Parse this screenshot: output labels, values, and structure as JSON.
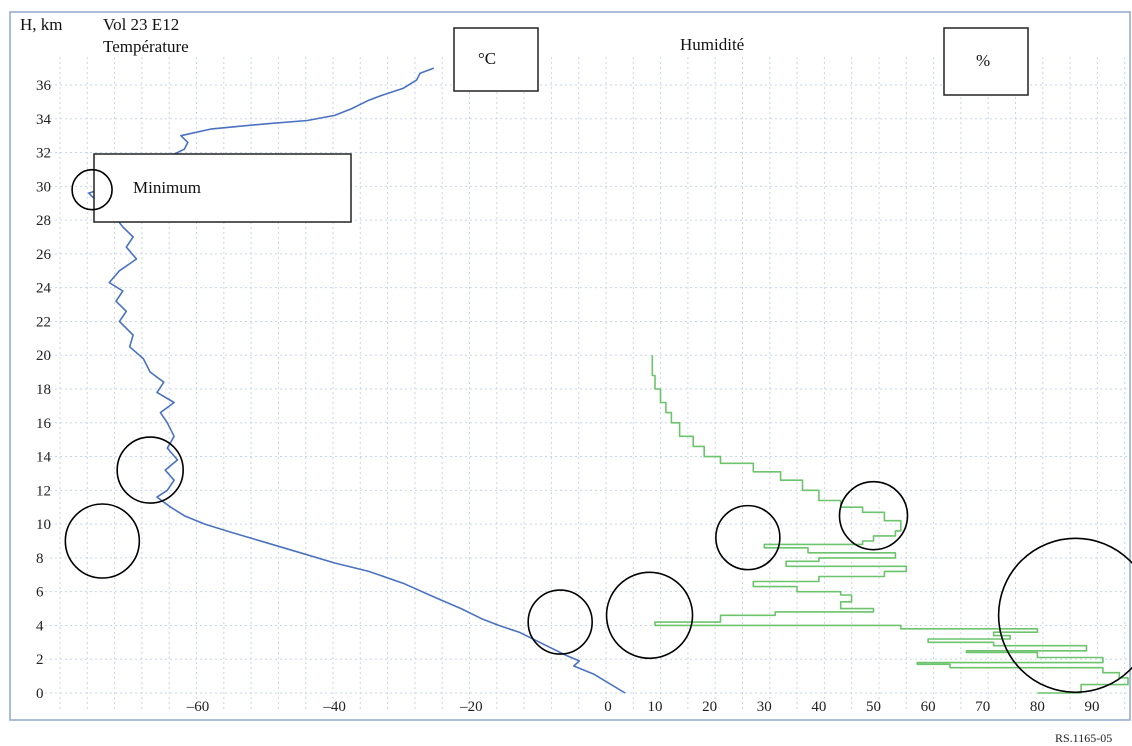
{
  "chart_data": {
    "type": "line",
    "ylabel": "H, km",
    "subtitle": "Vol 23 E12",
    "temperature_label": "Température",
    "humidity_label": "Humidité",
    "unit_celsius": "°C",
    "unit_percent": "%",
    "minimum_label": "Minimum",
    "footer_ref": "RS.1165-05",
    "ylim": [
      0,
      37
    ],
    "y_ticks": [
      0,
      2,
      4,
      6,
      8,
      10,
      12,
      14,
      16,
      18,
      20,
      22,
      24,
      26,
      28,
      30,
      32,
      34,
      36
    ],
    "temperature_axis": {
      "xlim": [
        -77,
        4
      ],
      "ticks": [
        -60,
        -40,
        -20,
        0
      ],
      "tick_labels": [
        "–60",
        "–40",
        "–20",
        "0"
      ]
    },
    "humidity_axis": {
      "xlim": [
        2,
        100
      ],
      "ticks": [
        10,
        20,
        30,
        40,
        50,
        60,
        70,
        80,
        90
      ],
      "tick_labels": [
        "10",
        "20",
        "30",
        "40",
        "50",
        "60",
        "70",
        "80",
        "90"
      ]
    },
    "grid": true,
    "series": [
      {
        "name": "Température",
        "axis": "temperature",
        "color": "#4a72c0",
        "points": [
          [
            2.5,
            0.0
          ],
          [
            -2.0,
            1.1
          ],
          [
            -5.0,
            1.6
          ],
          [
            -4.2,
            1.9
          ],
          [
            -6.0,
            2.2
          ],
          [
            -9.0,
            2.8
          ],
          [
            -13.0,
            3.6
          ],
          [
            -16.0,
            4.0
          ],
          [
            -18.5,
            4.4
          ],
          [
            -21.5,
            5.0
          ],
          [
            -25.0,
            5.6
          ],
          [
            -30.0,
            6.5
          ],
          [
            -35.0,
            7.2
          ],
          [
            -40.0,
            7.7
          ],
          [
            -45.0,
            8.3
          ],
          [
            -50.0,
            8.9
          ],
          [
            -55.0,
            9.5
          ],
          [
            -59.0,
            10.0
          ],
          [
            -62.0,
            10.5
          ],
          [
            -64.0,
            11.0
          ],
          [
            -66.0,
            11.6
          ],
          [
            -64.5,
            12.0
          ],
          [
            -63.5,
            12.6
          ],
          [
            -64.8,
            13.2
          ],
          [
            -63.0,
            13.8
          ],
          [
            -64.5,
            14.5
          ],
          [
            -63.5,
            15.2
          ],
          [
            -64.5,
            16.0
          ],
          [
            -65.5,
            16.6
          ],
          [
            -63.5,
            17.2
          ],
          [
            -66.0,
            17.8
          ],
          [
            -65.0,
            18.4
          ],
          [
            -67.0,
            19.0
          ],
          [
            -68.0,
            19.8
          ],
          [
            -70.0,
            20.5
          ],
          [
            -69.5,
            21.2
          ],
          [
            -71.5,
            22.0
          ],
          [
            -70.5,
            22.6
          ],
          [
            -72.0,
            23.2
          ],
          [
            -71.0,
            23.8
          ],
          [
            -73.0,
            24.3
          ],
          [
            -71.5,
            25.0
          ],
          [
            -69.0,
            25.7
          ],
          [
            -70.5,
            26.4
          ],
          [
            -69.5,
            27.0
          ],
          [
            -71.0,
            27.6
          ],
          [
            -72.0,
            28.1
          ],
          [
            -73.0,
            28.6
          ],
          [
            -75.0,
            29.2
          ],
          [
            -76.0,
            29.6
          ],
          [
            -72.0,
            30.1
          ],
          [
            -70.5,
            30.8
          ],
          [
            -68.0,
            31.4
          ],
          [
            -64.0,
            31.8
          ],
          [
            -62.0,
            32.2
          ],
          [
            -61.5,
            32.6
          ],
          [
            -62.5,
            33.0
          ],
          [
            -58.0,
            33.4
          ],
          [
            -50.0,
            33.7
          ],
          [
            -44.0,
            33.9
          ],
          [
            -40.0,
            34.2
          ],
          [
            -37.5,
            34.6
          ],
          [
            -35.0,
            35.1
          ],
          [
            -33.0,
            35.4
          ],
          [
            -30.0,
            35.8
          ],
          [
            -28.0,
            36.3
          ],
          [
            -27.5,
            36.7
          ],
          [
            -25.5,
            37.0
          ]
        ]
      },
      {
        "name": "Humidité",
        "axis": "humidity",
        "color": "#6cc46c",
        "points": [
          [
            80.0,
            0.0
          ],
          [
            88.0,
            0.5
          ],
          [
            99.0,
            0.9
          ],
          [
            95.0,
            1.2
          ],
          [
            92.0,
            1.5
          ],
          [
            64.0,
            1.7
          ],
          [
            58.0,
            1.8
          ],
          [
            92.0,
            2.1
          ],
          [
            80.0,
            2.4
          ],
          [
            67.0,
            2.5
          ],
          [
            89.0,
            2.8
          ],
          [
            72.0,
            3.0
          ],
          [
            60.0,
            3.2
          ],
          [
            75.0,
            3.4
          ],
          [
            72.0,
            3.6
          ],
          [
            80.0,
            3.8
          ],
          [
            55.0,
            4.0
          ],
          [
            10.0,
            4.2
          ],
          [
            22.0,
            4.6
          ],
          [
            32.0,
            4.8
          ],
          [
            50.0,
            5.0
          ],
          [
            44.0,
            5.4
          ],
          [
            46.0,
            5.8
          ],
          [
            44.0,
            6.0
          ],
          [
            36.0,
            6.3
          ],
          [
            28.0,
            6.6
          ],
          [
            40.0,
            6.9
          ],
          [
            52.0,
            7.2
          ],
          [
            56.0,
            7.5
          ],
          [
            34.0,
            7.8
          ],
          [
            40.0,
            8.0
          ],
          [
            54.0,
            8.3
          ],
          [
            38.0,
            8.6
          ],
          [
            30.0,
            8.8
          ],
          [
            48.0,
            9.0
          ],
          [
            50.0,
            9.3
          ],
          [
            54.0,
            9.6
          ],
          [
            55.0,
            10.2
          ],
          [
            52.0,
            10.7
          ],
          [
            48.0,
            11.0
          ],
          [
            44.0,
            11.4
          ],
          [
            40.0,
            12.0
          ],
          [
            37.0,
            12.6
          ],
          [
            33.0,
            13.1
          ],
          [
            28.0,
            13.6
          ],
          [
            22.0,
            14.0
          ],
          [
            19.0,
            14.6
          ],
          [
            17.0,
            15.2
          ],
          [
            14.5,
            16.0
          ],
          [
            13.0,
            16.6
          ],
          [
            12.0,
            17.2
          ],
          [
            11.0,
            18.0
          ],
          [
            10.0,
            18.8
          ],
          [
            9.5,
            19.5
          ],
          [
            9.5,
            20.0
          ]
        ]
      }
    ],
    "annotations": {
      "circles": [
        {
          "axis": "temperature",
          "x": -75.5,
          "y": 29.8
        },
        {
          "axis": "temperature",
          "x": -67.0,
          "y": 13.2
        },
        {
          "axis": "temperature",
          "x": -74.0,
          "y": 9.0
        },
        {
          "axis": "temperature",
          "x": -7.0,
          "y": 4.2
        },
        {
          "axis": "humidity",
          "x": 9.0,
          "y": 4.6
        },
        {
          "axis": "humidity",
          "x": 27.0,
          "y": 9.2
        },
        {
          "axis": "humidity",
          "x": 50.0,
          "y": 10.5
        },
        {
          "axis": "humidity",
          "x": 87.0,
          "y": 4.6
        }
      ]
    }
  }
}
